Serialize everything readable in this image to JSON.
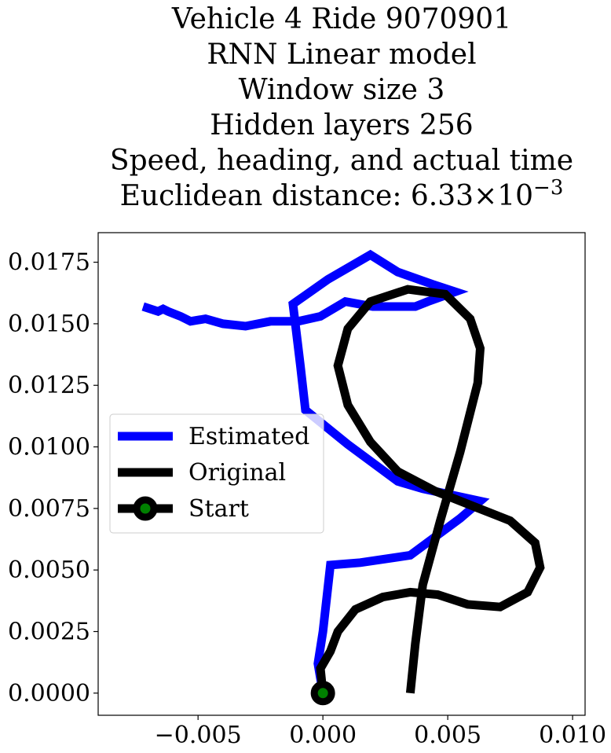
{
  "chart_data": {
    "type": "line",
    "title_lines": [
      "Vehicle 4 Ride 9070901",
      "RNN Linear model",
      "Window size 3",
      "Hidden layers 256",
      "Speed, heading, and actual time"
    ],
    "title_distance": {
      "prefix": "Euclidean distance: ",
      "mantissa": "6.33",
      "times": "×",
      "base": "10",
      "exponent": "−3"
    },
    "xlabel": "",
    "ylabel": "",
    "xlim": [
      -0.009,
      0.0105
    ],
    "ylim": [
      -0.0009,
      0.0187
    ],
    "xticks": [
      -0.005,
      0.0,
      0.005,
      0.01
    ],
    "xtick_labels": [
      "−0.005",
      "0.000",
      "0.005",
      "0.010"
    ],
    "yticks": [
      0.0,
      0.0025,
      0.005,
      0.0075,
      0.01,
      0.0125,
      0.015,
      0.0175
    ],
    "ytick_labels": [
      "0.0000",
      "0.0025",
      "0.0050",
      "0.0075",
      "0.0100",
      "0.0125",
      "0.0150",
      "0.0175"
    ],
    "grid": false,
    "legend": {
      "placement": "center-left",
      "entries": [
        "Estimated",
        "Original",
        "Start"
      ]
    },
    "series": [
      {
        "name": "Estimated",
        "color": "#0000ff",
        "points": [
          [
            0.0,
            0.0
          ],
          [
            -0.0002,
            0.0012
          ],
          [
            0.0,
            0.0025
          ],
          [
            0.0003,
            0.0052
          ],
          [
            0.0015,
            0.0053
          ],
          [
            0.0035,
            0.0056
          ],
          [
            0.0055,
            0.0071
          ],
          [
            0.0063,
            0.0078
          ],
          [
            0.004,
            0.0083
          ],
          [
            0.003,
            0.0086
          ],
          [
            0.001,
            0.0101
          ],
          [
            -0.0007,
            0.0115
          ],
          [
            -0.0009,
            0.0133
          ],
          [
            -0.0012,
            0.0158
          ],
          [
            0.0002,
            0.0168
          ],
          [
            0.0019,
            0.0178
          ],
          [
            0.003,
            0.0171
          ],
          [
            0.0044,
            0.0166
          ],
          [
            0.0053,
            0.0163
          ],
          [
            0.0042,
            0.0159
          ],
          [
            0.0037,
            0.0157
          ],
          [
            0.002,
            0.0157
          ],
          [
            0.0009,
            0.0159
          ],
          [
            -0.0001,
            0.0153
          ],
          [
            -0.001,
            0.0151
          ],
          [
            -0.0021,
            0.0151
          ],
          [
            -0.0031,
            0.0149
          ],
          [
            -0.004,
            0.015
          ],
          [
            -0.0047,
            0.0152
          ],
          [
            -0.0053,
            0.0151
          ],
          [
            -0.0057,
            0.0153
          ],
          [
            -0.0062,
            0.0155
          ],
          [
            -0.0064,
            0.0156
          ],
          [
            -0.0066,
            0.0155
          ],
          [
            -0.0072,
            0.0157
          ]
        ]
      },
      {
        "name": "Original",
        "color": "#000000",
        "points": [
          [
            0.0,
            0.0
          ],
          [
            -0.0001,
            0.001
          ],
          [
            0.0003,
            0.0017
          ],
          [
            0.0006,
            0.0025
          ],
          [
            0.0013,
            0.0034
          ],
          [
            0.0024,
            0.0039
          ],
          [
            0.0035,
            0.0041
          ],
          [
            0.0046,
            0.004
          ],
          [
            0.0058,
            0.0036
          ],
          [
            0.0071,
            0.0035
          ],
          [
            0.0082,
            0.0041
          ],
          [
            0.0087,
            0.0051
          ],
          [
            0.0085,
            0.0061
          ],
          [
            0.0075,
            0.007
          ],
          [
            0.006,
            0.0076
          ],
          [
            0.0045,
            0.0082
          ],
          [
            0.003,
            0.009
          ],
          [
            0.0019,
            0.0102
          ],
          [
            0.001,
            0.0117
          ],
          [
            0.0006,
            0.0133
          ],
          [
            0.001,
            0.0148
          ],
          [
            0.0019,
            0.0159
          ],
          [
            0.0034,
            0.0164
          ],
          [
            0.0049,
            0.0162
          ],
          [
            0.0059,
            0.0152
          ],
          [
            0.0063,
            0.014
          ],
          [
            0.0062,
            0.0126
          ],
          [
            0.0055,
            0.0098
          ],
          [
            0.0047,
            0.007
          ],
          [
            0.004,
            0.0044
          ],
          [
            0.0037,
            0.002
          ],
          [
            0.0035,
            0.0
          ]
        ]
      }
    ],
    "start_point": {
      "name": "Start",
      "x": 0.0,
      "y": 0.0,
      "marker_face": "#008000",
      "marker_edge": "#000000"
    }
  }
}
